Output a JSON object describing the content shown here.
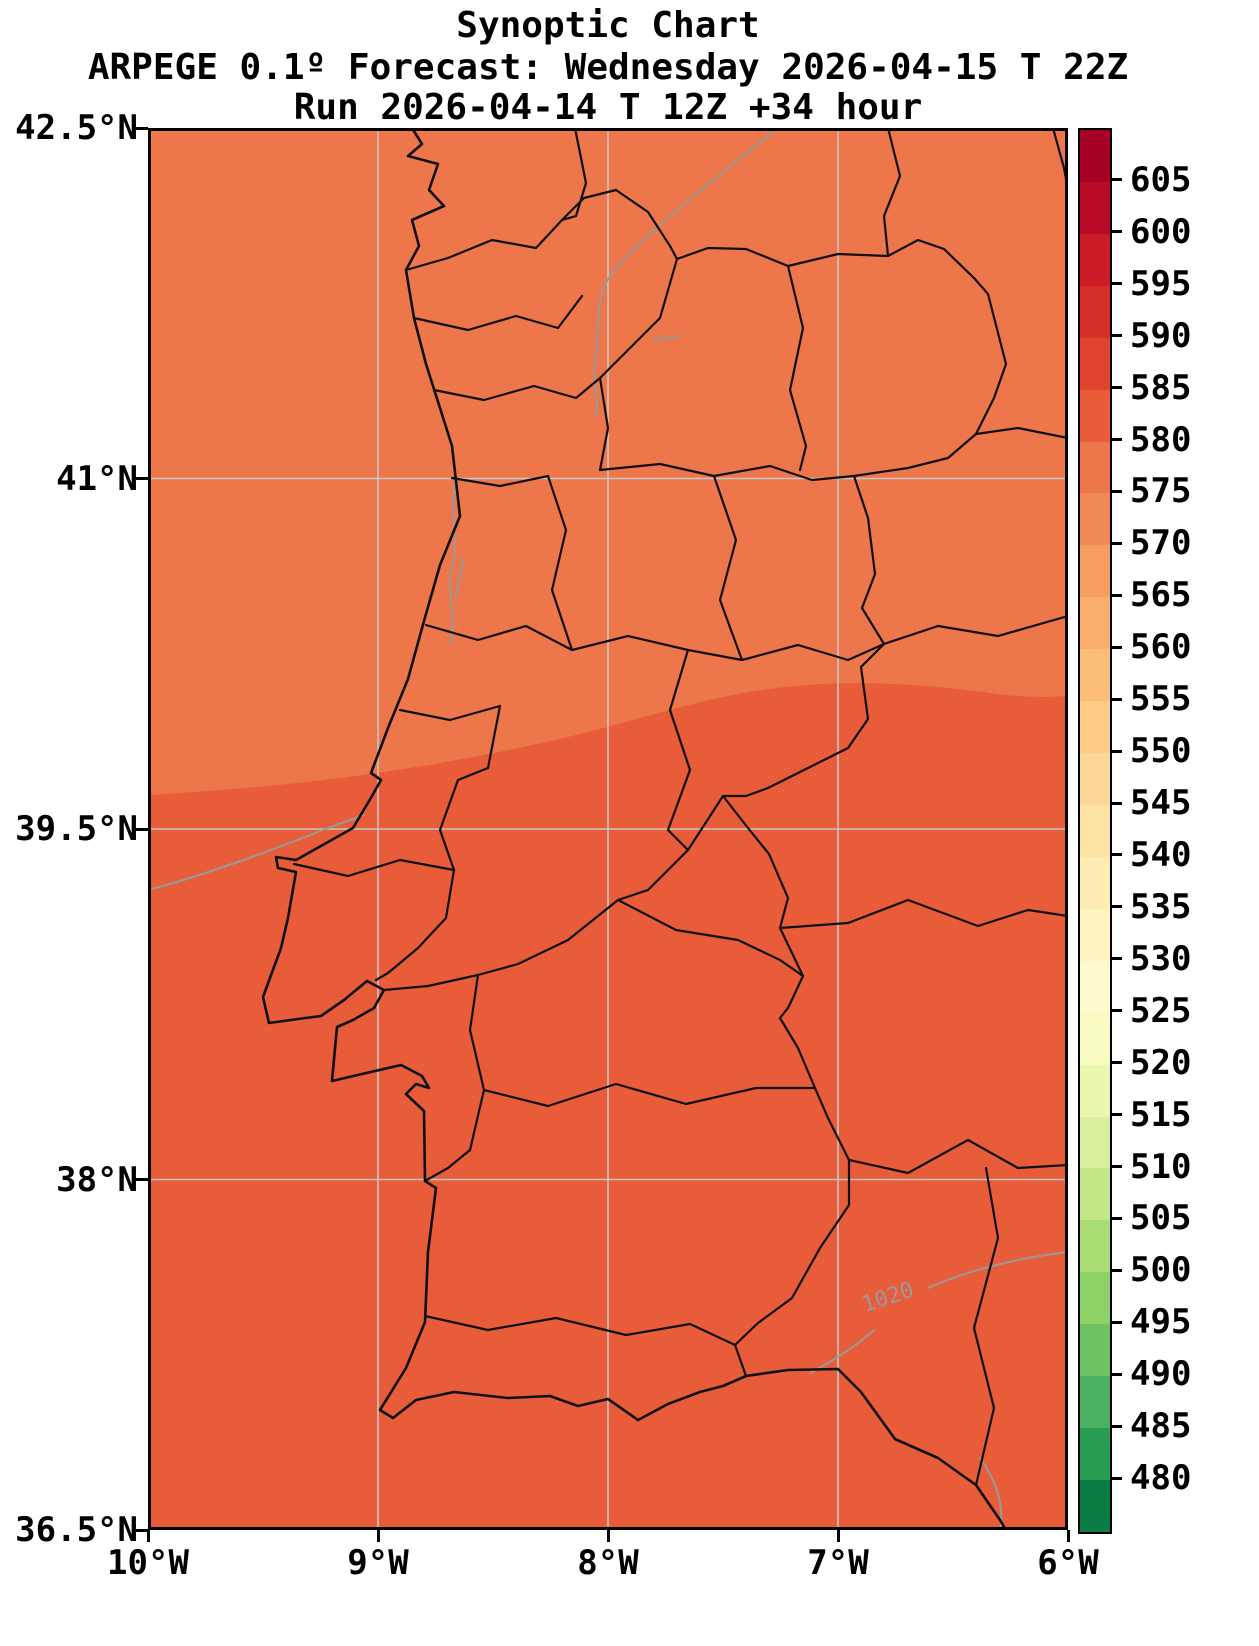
{
  "title": {
    "line1": "Synoptic Chart",
    "line2": "ARPEGE 0.1º Forecast: Wednesday 2026-04-15 T 22Z",
    "line3": "Run 2026-04-14 T 12Z +34 hour"
  },
  "axes": {
    "y_ticks": [
      {
        "label": "42.5°N",
        "lat": 42.5
      },
      {
        "label": "41°N",
        "lat": 41
      },
      {
        "label": "39.5°N",
        "lat": 39.5
      },
      {
        "label": "38°N",
        "lat": 38
      },
      {
        "label": "36.5°N",
        "lat": 36.5
      }
    ],
    "x_ticks": [
      {
        "label": "10°W",
        "lon": 10
      },
      {
        "label": "9°W",
        "lon": 9
      },
      {
        "label": "8°W",
        "lon": 8
      },
      {
        "label": "7°W",
        "lon": 7
      },
      {
        "label": "6°W",
        "lon": 6
      }
    ]
  },
  "colorbar": {
    "ticks": [
      "605",
      "600",
      "595",
      "590",
      "585",
      "580",
      "575",
      "570",
      "565",
      "560",
      "555",
      "550",
      "545",
      "540",
      "535",
      "530",
      "525",
      "520",
      "515",
      "510",
      "505",
      "500",
      "495",
      "490",
      "485",
      "480"
    ],
    "colors": [
      "#a50026",
      "#b90a26",
      "#cb1c27",
      "#d62f27",
      "#e0442e",
      "#e85c3a",
      "#ee764b",
      "#f28a57",
      "#f69d61",
      "#f9ae6c",
      "#fbbe78",
      "#fdcb86",
      "#fdd795",
      "#fee3a4",
      "#feecb2",
      "#fef4c0",
      "#fefacd",
      "#f7fbc2",
      "#eaf7ae",
      "#d9ef9b",
      "#c3e687",
      "#aadc74",
      "#8ed166",
      "#6ec264",
      "#4bb05f",
      "#279c52",
      "#0b7c43"
    ]
  },
  "map": {
    "contour_label": "1020",
    "region_colors": {
      "upper": "#ee764b",
      "lower": "#e85c3a"
    },
    "gridline_color": "#c6c6c6",
    "contour_color": "#999999",
    "boundary_color": "#101010"
  },
  "chart_data": {
    "type": "heatmap",
    "title": "Synoptic Chart",
    "subtitle": "ARPEGE 0.1º Forecast: Wednesday 2026-04-15 T 22Z",
    "run_info": "Run 2026-04-14 T 12Z +34 hour",
    "x_axis": {
      "ticks": [
        "10°W",
        "9°W",
        "8°W",
        "7°W",
        "6°W"
      ],
      "range_deg_west": [
        10,
        6
      ]
    },
    "y_axis": {
      "ticks": [
        "42.5°N",
        "41°N",
        "39.5°N",
        "38°N",
        "36.5°N"
      ],
      "range_deg_north": [
        36.5,
        42.5
      ]
    },
    "colorbar": {
      "tick_values": [
        605,
        600,
        595,
        590,
        585,
        580,
        575,
        570,
        565,
        560,
        555,
        550,
        545,
        540,
        535,
        530,
        525,
        520,
        515,
        510,
        505,
        500,
        495,
        490,
        485,
        480
      ],
      "orientation": "vertical-right",
      "colormap": "red-yellow-green reversed, discrete 5-unit bands"
    },
    "shaded_field_visible_bands": [
      {
        "value_band": "575-580",
        "region": "northern part of map, north of wavy boundary near 39.8°N"
      },
      {
        "value_band": "580-585",
        "region": "southern part of map, south of wavy boundary near 39.8°N"
      }
    ],
    "contour_labels": [
      {
        "text": "1020",
        "approx_location": "lower right of map"
      }
    ],
    "overlays": [
      "black coastline of Portugal and western Spain",
      "black district/province boundaries",
      "gray isobar contours",
      "gray lat/lon gridlines"
    ],
    "grid": true
  }
}
